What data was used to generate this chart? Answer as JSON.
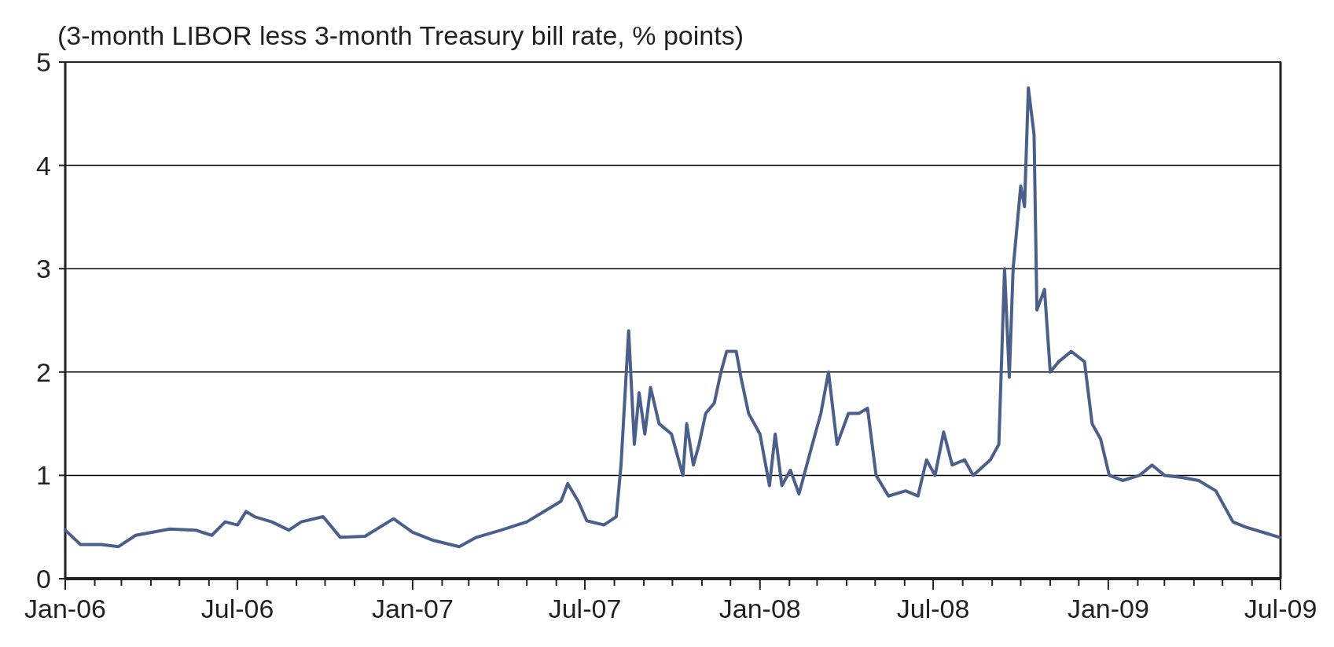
{
  "chart_data": {
    "type": "line",
    "title": "(3-month LIBOR less 3-month Treasury bill rate, % points)",
    "x": [
      "2006-01-01",
      "2006-01-17",
      "2006-02-08",
      "2006-02-26",
      "2006-03-16",
      "2006-04-03",
      "2006-04-21",
      "2006-05-18",
      "2006-06-04",
      "2006-06-18",
      "2006-07-01",
      "2006-07-10",
      "2006-07-19",
      "2006-08-06",
      "2006-08-24",
      "2006-09-06",
      "2006-09-29",
      "2006-10-17",
      "2006-11-12",
      "2006-12-12",
      "2007-01-01",
      "2007-01-23",
      "2007-02-19",
      "2007-03-09",
      "2007-04-04",
      "2007-05-01",
      "2007-05-19",
      "2007-06-06",
      "2007-06-13",
      "2007-06-24",
      "2007-07-03",
      "2007-07-21",
      "2007-08-03",
      "2007-08-08",
      "2007-08-16",
      "2007-08-22",
      "2007-08-27",
      "2007-09-02",
      "2007-09-08",
      "2007-09-17",
      "2007-09-30",
      "2007-10-12",
      "2007-10-16",
      "2007-10-23",
      "2007-10-29",
      "2007-11-05",
      "2007-11-14",
      "2007-11-21",
      "2007-11-27",
      "2007-12-07",
      "2007-12-12",
      "2007-12-20",
      "2008-01-01",
      "2008-01-11",
      "2008-01-17",
      "2008-01-24",
      "2008-02-02",
      "2008-02-11",
      "2008-02-25",
      "2008-03-05",
      "2008-03-13",
      "2008-03-22",
      "2008-04-03",
      "2008-04-14",
      "2008-04-23",
      "2008-05-02",
      "2008-05-15",
      "2008-06-02",
      "2008-06-15",
      "2008-06-24",
      "2008-07-03",
      "2008-07-12",
      "2008-07-21",
      "2008-08-03",
      "2008-08-12",
      "2008-08-30",
      "2008-09-08",
      "2008-09-14",
      "2008-09-19",
      "2008-09-23",
      "2008-10-01",
      "2008-10-05",
      "2008-10-09",
      "2008-10-15",
      "2008-10-18",
      "2008-10-26",
      "2008-11-01",
      "2008-11-10",
      "2008-11-23",
      "2008-12-07",
      "2008-12-15",
      "2008-12-24",
      "2009-01-02",
      "2009-01-16",
      "2009-02-03",
      "2009-02-16",
      "2009-03-01",
      "2009-03-19",
      "2009-04-06",
      "2009-04-24",
      "2009-05-12",
      "2009-05-25",
      "2009-06-12",
      "2009-06-30"
    ],
    "series": [
      {
        "color": "#4a5f8c",
        "values": [
          0.47,
          0.33,
          0.33,
          0.31,
          0.42,
          0.45,
          0.48,
          0.47,
          0.42,
          0.55,
          0.52,
          0.65,
          0.6,
          0.55,
          0.47,
          0.55,
          0.6,
          0.4,
          0.41,
          0.58,
          0.45,
          0.37,
          0.31,
          0.4,
          0.47,
          0.55,
          0.65,
          0.75,
          0.92,
          0.75,
          0.56,
          0.52,
          0.6,
          1.1,
          2.4,
          1.3,
          1.8,
          1.4,
          1.85,
          1.5,
          1.4,
          1.0,
          1.5,
          1.1,
          1.3,
          1.6,
          1.7,
          2.0,
          2.2,
          2.2,
          1.95,
          1.6,
          1.4,
          0.9,
          1.4,
          0.9,
          1.05,
          0.82,
          1.3,
          1.6,
          2.0,
          1.3,
          1.6,
          1.6,
          1.65,
          1.0,
          0.8,
          0.85,
          0.8,
          1.15,
          1.0,
          1.42,
          1.1,
          1.15,
          1.0,
          1.15,
          1.3,
          3.0,
          1.95,
          3.0,
          3.8,
          3.6,
          4.75,
          4.3,
          2.6,
          2.8,
          2.0,
          2.1,
          2.2,
          2.1,
          1.5,
          1.35,
          1.0,
          0.95,
          1.0,
          1.1,
          1.0,
          0.98,
          0.95,
          0.85,
          0.55,
          0.5,
          0.45,
          0.4
        ]
      }
    ],
    "xlim": [
      "2006-01-01",
      "2009-07-01"
    ],
    "xticks": [
      {
        "value": "2006-01-01",
        "label": "Jan-06"
      },
      {
        "value": "2006-02-01",
        "label": null
      },
      {
        "value": "2006-03-01",
        "label": null
      },
      {
        "value": "2006-04-01",
        "label": null
      },
      {
        "value": "2006-05-01",
        "label": null
      },
      {
        "value": "2006-06-01",
        "label": null
      },
      {
        "value": "2006-07-01",
        "label": "Jul-06"
      },
      {
        "value": "2006-08-01",
        "label": null
      },
      {
        "value": "2006-09-01",
        "label": null
      },
      {
        "value": "2006-10-01",
        "label": null
      },
      {
        "value": "2006-11-01",
        "label": null
      },
      {
        "value": "2006-12-01",
        "label": null
      },
      {
        "value": "2007-01-01",
        "label": "Jan-07"
      },
      {
        "value": "2007-02-01",
        "label": null
      },
      {
        "value": "2007-03-01",
        "label": null
      },
      {
        "value": "2007-04-01",
        "label": null
      },
      {
        "value": "2007-05-01",
        "label": null
      },
      {
        "value": "2007-06-01",
        "label": null
      },
      {
        "value": "2007-07-01",
        "label": "Jul-07"
      },
      {
        "value": "2007-08-01",
        "label": null
      },
      {
        "value": "2007-09-01",
        "label": null
      },
      {
        "value": "2007-10-01",
        "label": null
      },
      {
        "value": "2007-11-01",
        "label": null
      },
      {
        "value": "2007-12-01",
        "label": null
      },
      {
        "value": "2008-01-01",
        "label": "Jan-08"
      },
      {
        "value": "2008-02-01",
        "label": null
      },
      {
        "value": "2008-03-01",
        "label": null
      },
      {
        "value": "2008-04-01",
        "label": null
      },
      {
        "value": "2008-05-01",
        "label": null
      },
      {
        "value": "2008-06-01",
        "label": null
      },
      {
        "value": "2008-07-01",
        "label": "Jul-08"
      },
      {
        "value": "2008-08-01",
        "label": null
      },
      {
        "value": "2008-09-01",
        "label": null
      },
      {
        "value": "2008-10-01",
        "label": null
      },
      {
        "value": "2008-11-01",
        "label": null
      },
      {
        "value": "2008-12-01",
        "label": null
      },
      {
        "value": "2009-01-01",
        "label": "Jan-09"
      },
      {
        "value": "2009-02-01",
        "label": null
      },
      {
        "value": "2009-03-01",
        "label": null
      },
      {
        "value": "2009-04-01",
        "label": null
      },
      {
        "value": "2009-05-01",
        "label": null
      },
      {
        "value": "2009-06-01",
        "label": null
      },
      {
        "value": "2009-07-01",
        "label": "Jul-09"
      }
    ],
    "ylim": [
      0,
      5
    ],
    "yticks": [
      0,
      1,
      2,
      3,
      4,
      5
    ],
    "grid": "y",
    "marker": "none",
    "line_style": "solid"
  }
}
